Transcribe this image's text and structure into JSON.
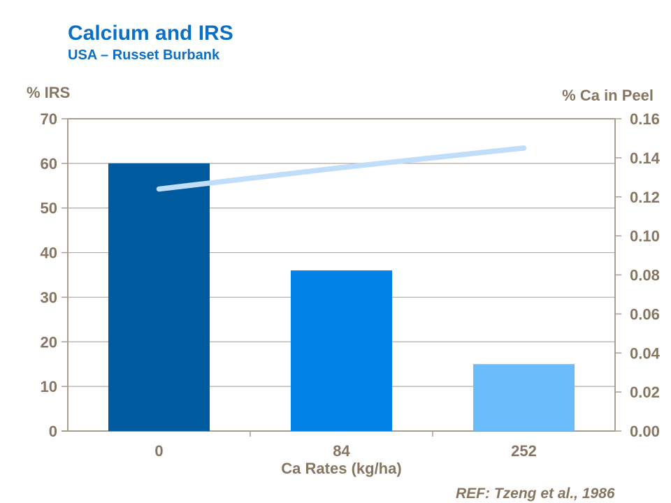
{
  "page": {
    "title": "Calcium and IRS",
    "subtitle": "USA – Russet Burbank",
    "reference": "REF: Tzeng et al., 1986"
  },
  "chart_data": {
    "type": "bar",
    "subtype": "combo-bar-line-dual-axis",
    "categories": [
      "0",
      "84",
      "252"
    ],
    "x_axis_title": "Ca Rates (kg/ha)",
    "left_axis": {
      "title": "% IRS",
      "min": 0,
      "max": 70,
      "tick_values": [
        0,
        10,
        20,
        30,
        40,
        50,
        60,
        70
      ],
      "tick_labels": [
        "0",
        "10",
        "20",
        "30",
        "40",
        "50",
        "60",
        "70"
      ]
    },
    "right_axis": {
      "title": "% Ca in Peel",
      "min": 0,
      "max": 0.16,
      "tick_values": [
        0,
        0.02,
        0.04,
        0.06,
        0.08,
        0.1,
        0.12,
        0.14,
        0.16
      ],
      "tick_labels": [
        "0.00",
        "0.02",
        "0.04",
        "0.06",
        "0.08",
        "0.10",
        "0.12",
        "0.14",
        "0.16"
      ]
    },
    "series": [
      {
        "name": "% IRS",
        "kind": "bar",
        "axis": "left",
        "values": [
          60,
          36,
          15
        ],
        "bar_colors": [
          "#005a9e",
          "#0082e6",
          "#6bbcfb"
        ]
      },
      {
        "name": "% Ca in Peel",
        "kind": "line",
        "axis": "right",
        "values": [
          0.124,
          0.135,
          0.145
        ],
        "color": "#c0defa"
      }
    ],
    "grid": "horizontal gridlines at left-axis 10-unit intervals, full frame border",
    "legend": "none",
    "colors": {
      "title_blue": "#0b6fc4",
      "axis_text": "#867661",
      "axis_line": "#a89e90",
      "gridline": "#b4aa9d"
    }
  }
}
